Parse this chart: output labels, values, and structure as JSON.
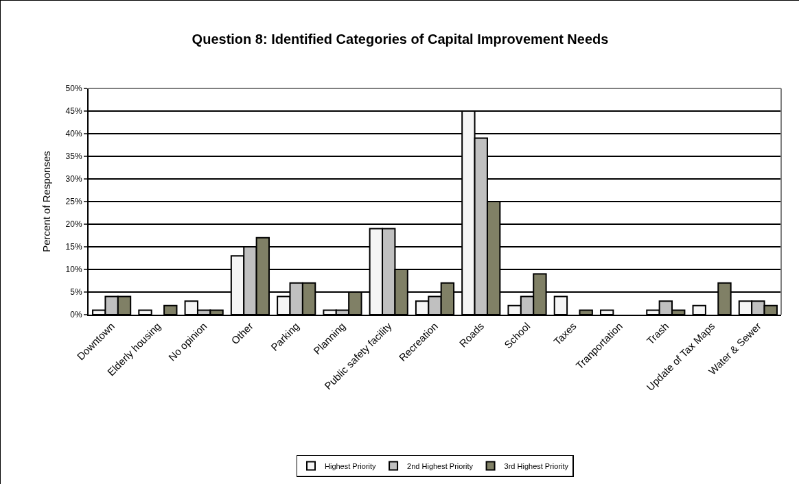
{
  "chart_data": {
    "type": "bar",
    "title": "Question 8: Identified Categories of Capital Improvement Needs",
    "ylabel": "Percent of Responses",
    "categories": [
      "Downtown",
      "Elderly housing",
      "No opinion",
      "Other",
      "Parking",
      "Planning",
      "Public safety facility",
      "Recreation",
      "Roads",
      "School",
      "Taxes",
      "Tranportation",
      "Trash",
      "Update of Tax Maps",
      "Water & Sewer"
    ],
    "series": [
      {
        "name": "Highest Priority",
        "color": "#f5f5f5",
        "values": [
          1,
          1,
          3,
          13,
          4,
          1,
          19,
          3,
          45,
          2,
          4,
          1,
          1,
          2,
          3
        ]
      },
      {
        "name": "2nd Highest Priority",
        "color": "#c0c0c0",
        "values": [
          4,
          0,
          1,
          15,
          7,
          1,
          19,
          4,
          39,
          4,
          0,
          0,
          3,
          0,
          3
        ]
      },
      {
        "name": "3rd Highest Priority",
        "color": "#808066",
        "values": [
          4,
          2,
          1,
          17,
          7,
          5,
          10,
          7,
          25,
          9,
          1,
          0,
          1,
          7,
          2
        ]
      }
    ],
    "ylim": [
      0,
      50
    ],
    "yticks": [
      {
        "value": 0,
        "label": "0%"
      },
      {
        "value": 5,
        "label": "5%"
      },
      {
        "value": 10,
        "label": "10%"
      },
      {
        "value": 15,
        "label": "15%"
      },
      {
        "value": 20,
        "label": "20%"
      },
      {
        "value": 25,
        "label": "25%"
      },
      {
        "value": 30,
        "label": "30%"
      },
      {
        "value": 35,
        "label": "35%"
      },
      {
        "value": 40,
        "label": "40%"
      },
      {
        "value": 45,
        "label": "45%"
      },
      {
        "value": 50,
        "label": "50%"
      }
    ],
    "grid": "y",
    "legend": "bottom"
  }
}
